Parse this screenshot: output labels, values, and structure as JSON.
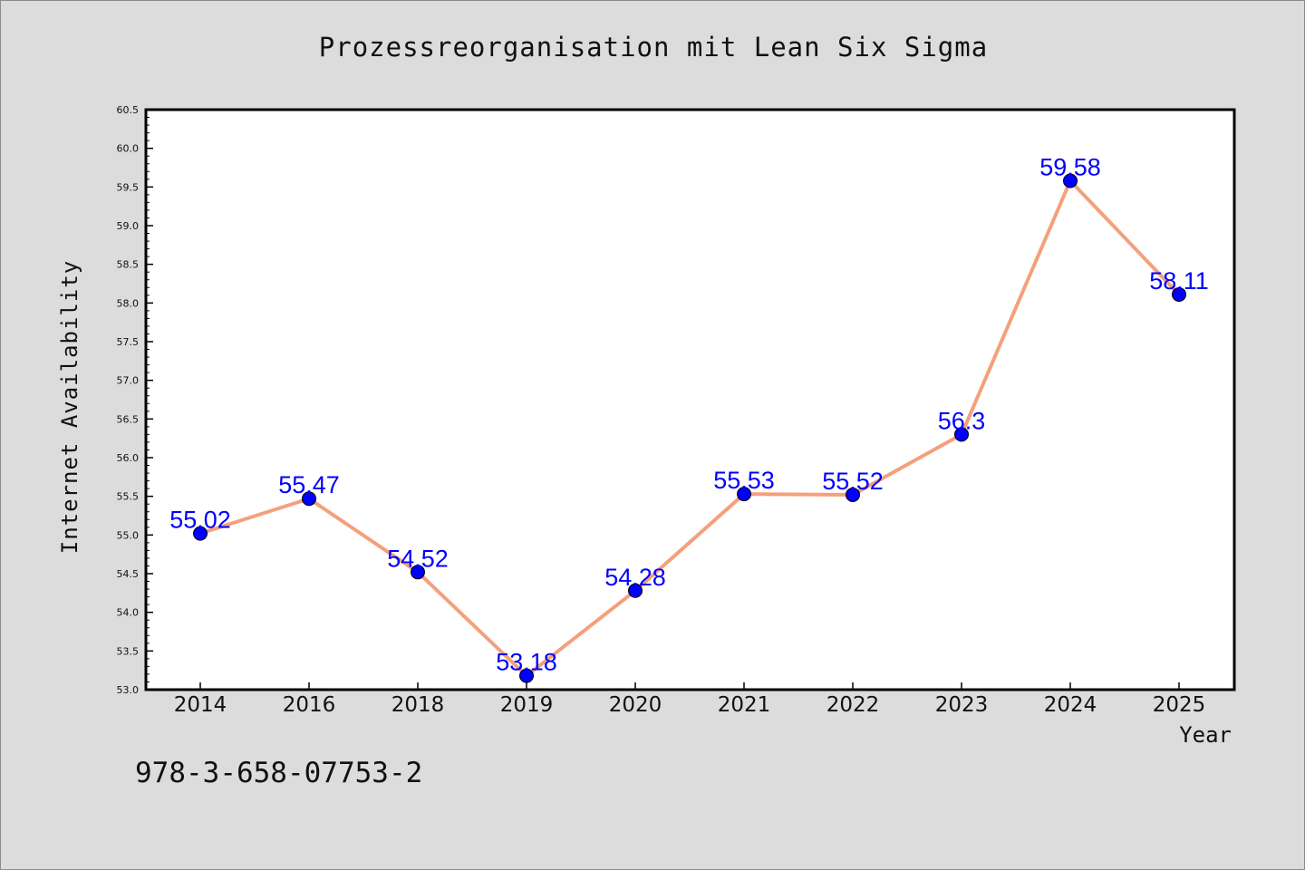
{
  "chart_data": {
    "type": "line",
    "title": "Prozessreorganisation mit Lean Six Sigma",
    "xlabel": "Year",
    "ylabel": "Internet Availability",
    "categories": [
      "2014",
      "2016",
      "2018",
      "2019",
      "2020",
      "2021",
      "2022",
      "2023",
      "2024",
      "2025"
    ],
    "series": [
      {
        "values": [
          55.02,
          55.47,
          54.52,
          53.18,
          54.28,
          55.53,
          55.52,
          56.3,
          59.58,
          58.11
        ],
        "data_labels": [
          "55.02",
          "55.47",
          "54.52",
          "53.18",
          "54.28",
          "55.53",
          "55.52",
          "56.3",
          "59.58",
          "58.11"
        ],
        "line_color": "#f4a07c",
        "marker_color": "#0000ff"
      }
    ],
    "ylim": [
      53.0,
      60.5
    ],
    "yticks": [
      "53.0",
      "53.5",
      "54.0",
      "54.5",
      "55.0",
      "55.5",
      "56.0",
      "56.5",
      "57.0",
      "57.5",
      "58.0",
      "58.5",
      "59.0",
      "59.5",
      "60.0",
      "60.5"
    ],
    "grid": false,
    "legend": "none"
  },
  "footer": {
    "isbn": "978-3-658-07753-2"
  },
  "colors": {
    "background": "#dcdcdc",
    "plot_background": "#ffffff",
    "line": "#f4a07c",
    "marker": "#0000ff",
    "data_label": "#0000ff"
  }
}
